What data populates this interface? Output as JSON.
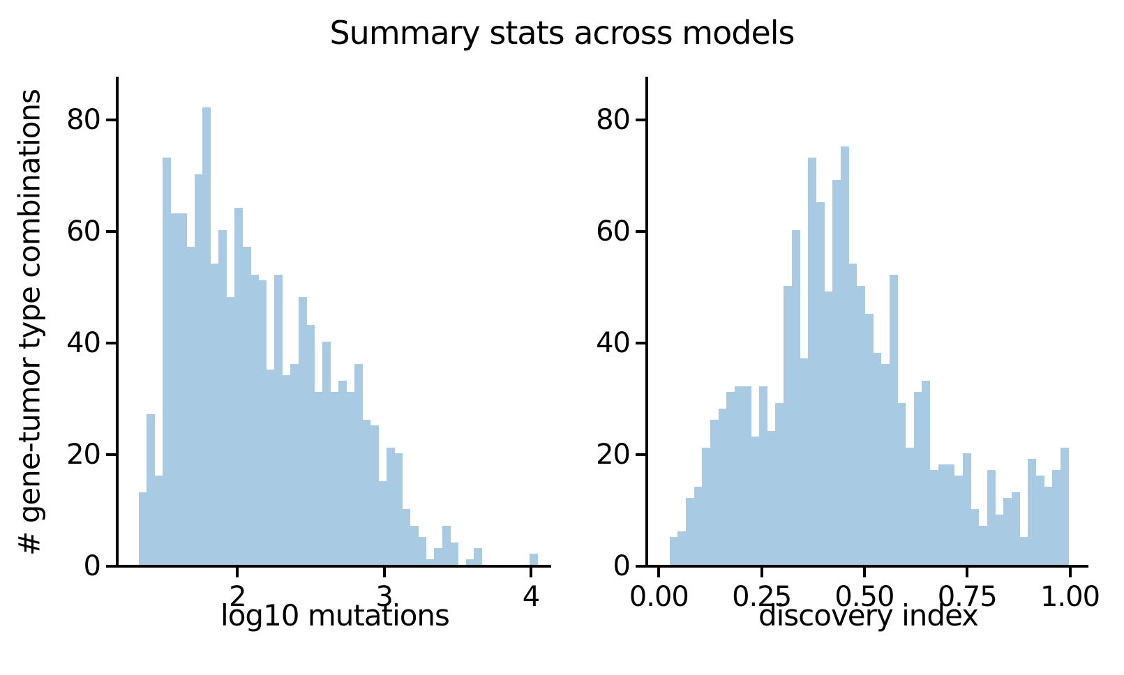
{
  "figure": {
    "title": "Summary stats across models",
    "ylabel": "# gene-tumor type combinations",
    "bar_color": "#a8cbe3",
    "axis_color": "#000000"
  },
  "chart_data": [
    {
      "type": "bar",
      "subtype": "histogram",
      "title": "Summary stats across models",
      "xlabel": "log10 mutations",
      "ylabel": "# gene-tumor type combinations",
      "legend": "none",
      "grid": false,
      "bin_start": 1.327,
      "bin_width": 0.0544,
      "counts": [
        13,
        27,
        16,
        73,
        63,
        63,
        57,
        70,
        82,
        54,
        60,
        48,
        64,
        57,
        52,
        51,
        35,
        52,
        34,
        36,
        48,
        43,
        31,
        40,
        31,
        33,
        31,
        36,
        26,
        25,
        15,
        21,
        20,
        10,
        7,
        5,
        1,
        3,
        7,
        4,
        0,
        1,
        3,
        0,
        0,
        0,
        0,
        0,
        0,
        2
      ],
      "xtick_values": [
        2,
        3,
        4
      ],
      "xtick_labels": [
        "2",
        "3",
        "4"
      ],
      "ytick_values": [
        0,
        20,
        40,
        60,
        80
      ],
      "ytick_labels": [
        "0",
        "20",
        "40",
        "60",
        "80"
      ],
      "xlim": [
        1.19,
        4.14
      ],
      "ylim": [
        0,
        87.5
      ]
    },
    {
      "type": "bar",
      "subtype": "histogram",
      "title": "Summary stats across models",
      "xlabel": "discovery index",
      "ylabel": "# gene-tumor type combinations",
      "legend": "none",
      "grid": false,
      "bin_start": 0.0258,
      "bin_width": 0.0198,
      "counts": [
        5,
        6,
        12,
        14,
        21,
        26,
        28,
        31,
        32,
        32,
        23,
        32,
        24,
        29,
        50,
        60,
        37,
        73,
        65,
        49,
        69,
        75,
        54,
        50,
        45,
        38,
        36,
        52,
        29,
        21,
        31,
        33,
        17,
        18,
        18,
        16,
        20,
        10,
        7,
        17,
        9,
        12,
        13,
        5,
        19,
        16,
        14,
        17,
        21
      ],
      "xtick_values": [
        0.0,
        0.25,
        0.5,
        0.75,
        1.0
      ],
      "xtick_labels": [
        "0.00",
        "0.25",
        "0.50",
        "0.75",
        "1.00"
      ],
      "ytick_values": [
        0,
        20,
        40,
        60,
        80
      ],
      "ytick_labels": [
        "0",
        "20",
        "40",
        "60",
        "80"
      ],
      "xlim": [
        -0.026,
        1.045
      ],
      "ylim": [
        0,
        87.5
      ]
    }
  ]
}
